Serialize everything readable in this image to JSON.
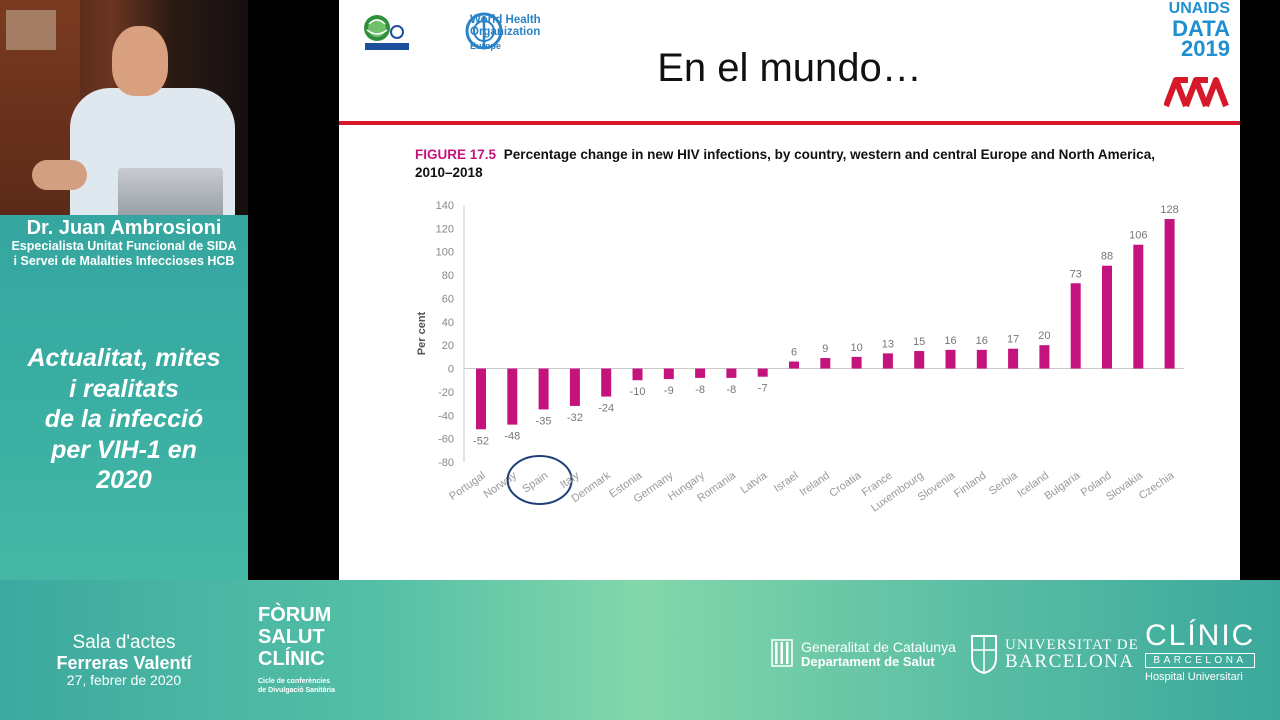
{
  "speaker": {
    "name": "Dr. Juan Ambrosioni",
    "role_line1": "Especialista Unitat Funcional de SIDA",
    "role_line2": "i Servei de Malalties Infeccioses HCB"
  },
  "talk_title_lines": [
    "Actualitat, mites",
    "i realitats",
    "de la infecció",
    "per VIH-1 en",
    "2020"
  ],
  "slide": {
    "who_text_line1": "World Health",
    "who_text_line2": "Organization",
    "who_sub": "Europe",
    "unaids_line1": "UNAIDS",
    "unaids_line2": "DATA",
    "unaids_line3": "2019",
    "title": "En el mundo…",
    "figure_number": "FIGURE 17.5",
    "figure_caption": "Percentage change in new HIV infections, by country, western and central Europe and North America, 2010–2018"
  },
  "chart_data": {
    "type": "bar",
    "ylabel": "Per cent",
    "ylim": [
      -80,
      140
    ],
    "yticks": [
      140,
      120,
      100,
      80,
      60,
      40,
      20,
      0,
      -20,
      -40,
      -60,
      -80
    ],
    "categories": [
      "Portugal",
      "Norway",
      "Spain",
      "Italy",
      "Denmark",
      "Estonia",
      "Germany",
      "Hungary",
      "Romania",
      "Latvia",
      "Israel",
      "Ireland",
      "Croatia",
      "France",
      "Luxembourg",
      "Slovenia",
      "Finland",
      "Serbia",
      "Iceland",
      "Bulgaria",
      "Poland",
      "Slovakia",
      "Czechia"
    ],
    "values": [
      -52,
      -48,
      -35,
      -32,
      -24,
      -10,
      -9,
      -8,
      -8,
      -7,
      6,
      9,
      10,
      13,
      15,
      16,
      16,
      17,
      20,
      73,
      88,
      106,
      128
    ],
    "highlighted_category": "Spain",
    "bar_color": "#c5137d"
  },
  "footer": {
    "venue_line1": "Sala d'actes",
    "venue_line2": "Ferreras Valentí",
    "venue_line3": "27, febrer de 2020",
    "forum_lines": [
      "FÒRUM",
      "SALUT",
      "CLÍNIC"
    ],
    "forum_sub_line1": "Cicle de conferències",
    "forum_sub_line2": "de Divulgació Sanitària",
    "gencat_line1": "Generalitat de Catalunya",
    "gencat_line2": "Departament de Salut",
    "ub_line1": "UNIVERSITAT DE",
    "ub_line2": "BARCELONA",
    "clinic_line1": "CLÍNIC",
    "clinic_line2": "BARCELONA",
    "clinic_line3": "Hospital Universitari"
  }
}
